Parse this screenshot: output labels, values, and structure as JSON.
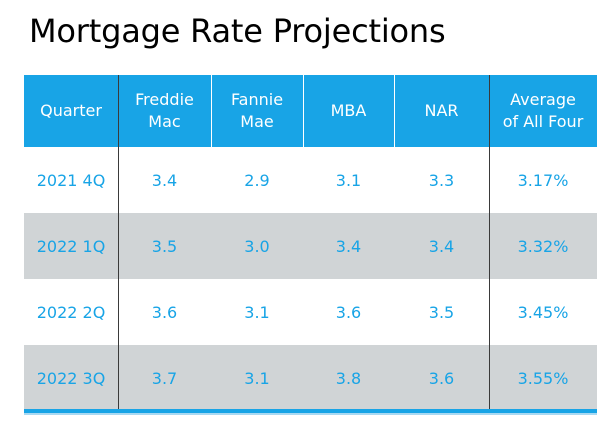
{
  "chart_data": {
    "type": "table",
    "title": "Mortgage Rate Projections",
    "columns": [
      "Quarter",
      "Freddie\nMac",
      "Fannie\nMae",
      "MBA",
      "NAR",
      "Average\nof All Four"
    ],
    "rows": [
      [
        "2021 4Q",
        "3.4",
        "2.9",
        "3.1",
        "3.3",
        "3.17%"
      ],
      [
        "2022 1Q",
        "3.5",
        "3.0",
        "3.4",
        "3.4",
        "3.32%"
      ],
      [
        "2022 2Q",
        "3.6",
        "3.1",
        "3.6",
        "3.5",
        "3.45%"
      ],
      [
        "2022 3Q",
        "3.7",
        "3.1",
        "3.8",
        "3.6",
        "3.55%"
      ]
    ],
    "shaded_rows": [
      false,
      true,
      false,
      true
    ],
    "colors": {
      "header_background": "#18a4e6",
      "header_text": "#ffffff",
      "body_text": "#18a4e6",
      "shaded_row": "#d0d4d6",
      "title_text": "#000000"
    }
  }
}
